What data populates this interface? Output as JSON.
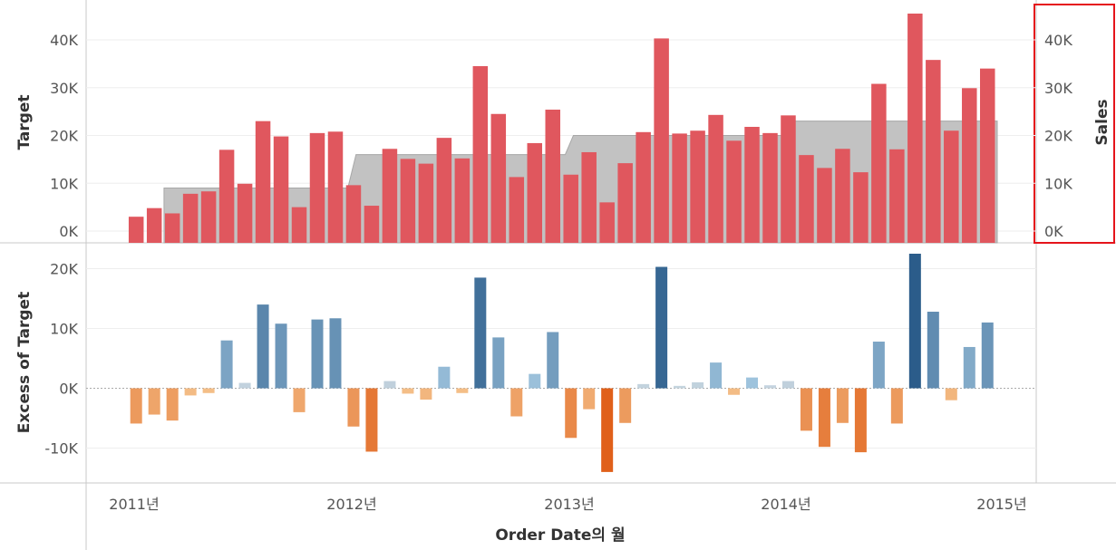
{
  "chart_data": {
    "type": "bar",
    "x": [
      "2011-01",
      "2011-02",
      "2011-03",
      "2011-04",
      "2011-05",
      "2011-06",
      "2011-07",
      "2011-08",
      "2011-09",
      "2011-10",
      "2011-11",
      "2011-12",
      "2012-01",
      "2012-02",
      "2012-03",
      "2012-04",
      "2012-05",
      "2012-06",
      "2012-07",
      "2012-08",
      "2012-09",
      "2012-10",
      "2012-11",
      "2012-12",
      "2013-01",
      "2013-02",
      "2013-03",
      "2013-04",
      "2013-05",
      "2013-06",
      "2013-07",
      "2013-08",
      "2013-09",
      "2013-10",
      "2013-11",
      "2013-12",
      "2014-01",
      "2014-02",
      "2014-03",
      "2014-04",
      "2014-05",
      "2014-06",
      "2014-07",
      "2014-08",
      "2014-09",
      "2014-10",
      "2014-11",
      "2014-12"
    ],
    "xlabel": "Order Date의 월",
    "x_ticks": [
      "2011년",
      "2012년",
      "2013년",
      "2014년",
      "2015년"
    ],
    "top_panel": {
      "ylabel_left": "Target",
      "ylabel_right": "Sales",
      "y_ticks": [
        "0K",
        "10K",
        "20K",
        "30K",
        "40K"
      ],
      "ylim": [
        -2000,
        46000
      ],
      "sales": [
        3000,
        4800,
        3700,
        7800,
        8300,
        17000,
        9900,
        23000,
        19800,
        5000,
        20500,
        20800,
        9600,
        5300,
        17200,
        15100,
        14100,
        19500,
        15200,
        34500,
        24500,
        11300,
        18400,
        25400,
        11800,
        16500,
        6000,
        14200,
        20700,
        40300,
        20400,
        21000,
        24300,
        18900,
        21800,
        20500,
        24200,
        15900,
        13200,
        17200,
        12300,
        30800,
        17100,
        45500,
        35800,
        21000,
        29900,
        34000
      ],
      "target": [
        null,
        null,
        9000,
        9000,
        9000,
        9000,
        9000,
        9000,
        9000,
        9000,
        9000,
        9000,
        16000,
        16000,
        16000,
        16000,
        16000,
        16000,
        16000,
        16000,
        16000,
        16000,
        16000,
        16000,
        20000,
        20000,
        20000,
        20000,
        20000,
        20000,
        20000,
        20000,
        20000,
        20000,
        20000,
        20000,
        23000,
        23000,
        23000,
        23000,
        23000,
        23000,
        23000,
        23000,
        23000,
        23000,
        23000,
        23000
      ],
      "target_color": "#c2c2c2",
      "sales_color": "#e0575e",
      "highlight_color": "#e5141b"
    },
    "bottom_panel": {
      "ylabel": "Excess of Target",
      "y_ticks": [
        "-10K",
        "0K",
        "10K",
        "20K"
      ],
      "ylim": [
        -16000,
        24000
      ],
      "values": [
        -5900,
        -4400,
        -5400,
        -1200,
        -800,
        8000,
        900,
        14000,
        10800,
        -4000,
        11500,
        11700,
        -6400,
        -10600,
        1200,
        -900,
        -1900,
        3600,
        -800,
        18500,
        8500,
        -4700,
        2400,
        9400,
        -8300,
        -3500,
        -14000,
        -5800,
        700,
        20300,
        400,
        1000,
        4300,
        -1100,
        1800,
        500,
        1200,
        -7100,
        -9800,
        -5800,
        -10700,
        7800,
        -5900,
        22500,
        12800,
        -2000,
        6900,
        11000
      ],
      "positive_color_light": "#a8cce4",
      "positive_color_dark": "#2b5c8a",
      "negative_color_light": "#f5c48e",
      "negative_color_dark": "#e0601a"
    }
  }
}
